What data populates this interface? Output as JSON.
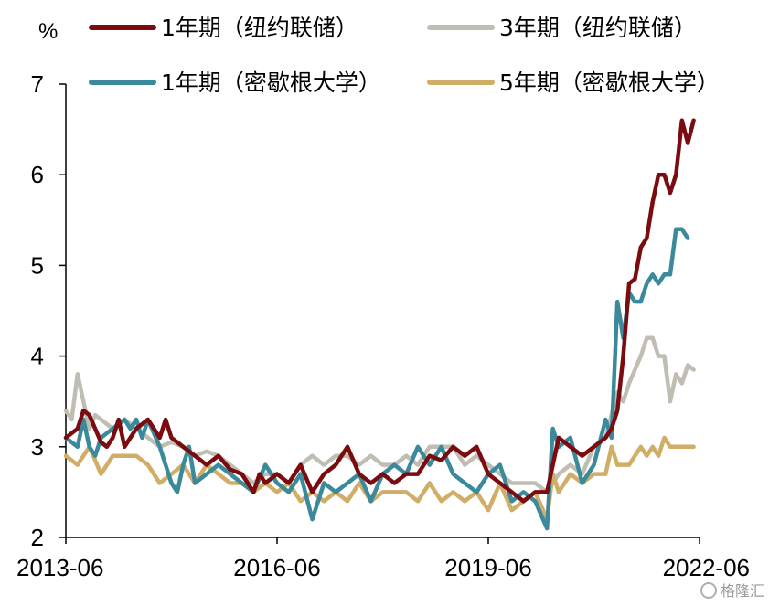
{
  "chart_data": {
    "type": "line",
    "title": "",
    "xlabel": "",
    "ylabel": "%",
    "ylim": [
      2,
      7
    ],
    "yticks": [
      2,
      3,
      4,
      5,
      6,
      7
    ],
    "xlim": [
      "2013-06",
      "2022-06"
    ],
    "xticks": [
      "2013-06",
      "2016-06",
      "2019-06",
      "2022-06"
    ],
    "grid": false,
    "legend_position": "top",
    "series": [
      {
        "name": "1年期（纽约联储）",
        "color": "#7a0c10",
        "points": [
          [
            "2013-06",
            3.1
          ],
          [
            "2013-08",
            3.2
          ],
          [
            "2013-09",
            3.4
          ],
          [
            "2013-10",
            3.35
          ],
          [
            "2013-11",
            3.2
          ],
          [
            "2013-12",
            3.05
          ],
          [
            "2014-01",
            3.0
          ],
          [
            "2014-02",
            3.1
          ],
          [
            "2014-03",
            3.3
          ],
          [
            "2014-04",
            3.0
          ],
          [
            "2014-05",
            3.1
          ],
          [
            "2014-06",
            3.2
          ],
          [
            "2014-08",
            3.3
          ],
          [
            "2014-09",
            3.2
          ],
          [
            "2014-10",
            3.1
          ],
          [
            "2014-11",
            3.3
          ],
          [
            "2014-12",
            3.1
          ],
          [
            "2015-02",
            3.0
          ],
          [
            "2015-04",
            2.9
          ],
          [
            "2015-06",
            2.8
          ],
          [
            "2015-08",
            2.9
          ],
          [
            "2015-10",
            2.75
          ],
          [
            "2015-12",
            2.7
          ],
          [
            "2016-02",
            2.5
          ],
          [
            "2016-03",
            2.7
          ],
          [
            "2016-04",
            2.6
          ],
          [
            "2016-06",
            2.7
          ],
          [
            "2016-08",
            2.6
          ],
          [
            "2016-10",
            2.8
          ],
          [
            "2016-12",
            2.5
          ],
          [
            "2017-02",
            2.7
          ],
          [
            "2017-04",
            2.8
          ],
          [
            "2017-06",
            3.0
          ],
          [
            "2017-08",
            2.7
          ],
          [
            "2017-10",
            2.6
          ],
          [
            "2017-12",
            2.7
          ],
          [
            "2018-02",
            2.6
          ],
          [
            "2018-04",
            2.7
          ],
          [
            "2018-06",
            2.7
          ],
          [
            "2018-08",
            2.9
          ],
          [
            "2018-10",
            2.85
          ],
          [
            "2018-12",
            3.0
          ],
          [
            "2019-02",
            2.9
          ],
          [
            "2019-04",
            3.0
          ],
          [
            "2019-06",
            2.7
          ],
          [
            "2019-08",
            2.6
          ],
          [
            "2019-10",
            2.5
          ],
          [
            "2019-12",
            2.4
          ],
          [
            "2020-02",
            2.5
          ],
          [
            "2020-04",
            2.5
          ],
          [
            "2020-05",
            2.8
          ],
          [
            "2020-06",
            3.1
          ],
          [
            "2020-08",
            3.0
          ],
          [
            "2020-10",
            2.9
          ],
          [
            "2020-12",
            3.0
          ],
          [
            "2021-02",
            3.1
          ],
          [
            "2021-03",
            3.2
          ],
          [
            "2021-04",
            3.4
          ],
          [
            "2021-05",
            4.0
          ],
          [
            "2021-06",
            4.8
          ],
          [
            "2021-07",
            4.85
          ],
          [
            "2021-08",
            5.2
          ],
          [
            "2021-09",
            5.3
          ],
          [
            "2021-10",
            5.7
          ],
          [
            "2021-11",
            6.0
          ],
          [
            "2021-12",
            6.0
          ],
          [
            "2022-01",
            5.8
          ],
          [
            "2022-02",
            6.0
          ],
          [
            "2022-03",
            6.6
          ],
          [
            "2022-04",
            6.35
          ],
          [
            "2022-05",
            6.6
          ]
        ]
      },
      {
        "name": "3年期（纽约联储）",
        "color": "#c0bdb2",
        "points": [
          [
            "2013-06",
            3.4
          ],
          [
            "2013-07",
            3.3
          ],
          [
            "2013-08",
            3.8
          ],
          [
            "2013-09",
            3.5
          ],
          [
            "2013-10",
            3.2
          ],
          [
            "2013-11",
            3.35
          ],
          [
            "2013-12",
            3.3
          ],
          [
            "2014-02",
            3.2
          ],
          [
            "2014-04",
            3.3
          ],
          [
            "2014-06",
            3.2
          ],
          [
            "2014-08",
            3.1
          ],
          [
            "2014-10",
            3.0
          ],
          [
            "2014-12",
            3.05
          ],
          [
            "2015-02",
            3.0
          ],
          [
            "2015-04",
            2.9
          ],
          [
            "2015-06",
            2.95
          ],
          [
            "2015-08",
            2.9
          ],
          [
            "2015-10",
            2.8
          ],
          [
            "2015-12",
            2.7
          ],
          [
            "2016-02",
            2.6
          ],
          [
            "2016-04",
            2.7
          ],
          [
            "2016-06",
            2.7
          ],
          [
            "2016-08",
            2.6
          ],
          [
            "2016-10",
            2.8
          ],
          [
            "2016-12",
            2.9
          ],
          [
            "2017-02",
            2.8
          ],
          [
            "2017-04",
            2.9
          ],
          [
            "2017-06",
            2.9
          ],
          [
            "2017-08",
            2.8
          ],
          [
            "2017-10",
            2.9
          ],
          [
            "2017-12",
            2.8
          ],
          [
            "2018-02",
            2.8
          ],
          [
            "2018-04",
            2.9
          ],
          [
            "2018-06",
            2.8
          ],
          [
            "2018-08",
            3.0
          ],
          [
            "2018-10",
            3.0
          ],
          [
            "2018-12",
            3.0
          ],
          [
            "2019-02",
            2.8
          ],
          [
            "2019-04",
            2.9
          ],
          [
            "2019-06",
            2.8
          ],
          [
            "2019-08",
            2.7
          ],
          [
            "2019-10",
            2.6
          ],
          [
            "2019-12",
            2.6
          ],
          [
            "2020-02",
            2.6
          ],
          [
            "2020-04",
            2.5
          ],
          [
            "2020-06",
            2.7
          ],
          [
            "2020-08",
            2.8
          ],
          [
            "2020-10",
            2.7
          ],
          [
            "2020-12",
            3.0
          ],
          [
            "2021-02",
            3.1
          ],
          [
            "2021-04",
            3.6
          ],
          [
            "2021-05",
            3.5
          ],
          [
            "2021-06",
            3.7
          ],
          [
            "2021-08",
            4.0
          ],
          [
            "2021-09",
            4.2
          ],
          [
            "2021-10",
            4.2
          ],
          [
            "2021-11",
            4.0
          ],
          [
            "2021-12",
            4.0
          ],
          [
            "2022-01",
            3.5
          ],
          [
            "2022-02",
            3.8
          ],
          [
            "2022-03",
            3.7
          ],
          [
            "2022-04",
            3.9
          ],
          [
            "2022-05",
            3.85
          ]
        ]
      },
      {
        "name": "1年期（密歇根大学）",
        "color": "#3b8a9b",
        "points": [
          [
            "2013-06",
            3.1
          ],
          [
            "2013-08",
            3.0
          ],
          [
            "2013-09",
            3.3
          ],
          [
            "2013-10",
            3.0
          ],
          [
            "2013-11",
            2.9
          ],
          [
            "2013-12",
            3.1
          ],
          [
            "2014-02",
            3.2
          ],
          [
            "2014-04",
            3.3
          ],
          [
            "2014-05",
            3.2
          ],
          [
            "2014-06",
            3.3
          ],
          [
            "2014-07",
            3.1
          ],
          [
            "2014-08",
            3.3
          ],
          [
            "2014-10",
            3.0
          ],
          [
            "2014-12",
            2.6
          ],
          [
            "2015-01",
            2.5
          ],
          [
            "2015-02",
            2.8
          ],
          [
            "2015-03",
            3.0
          ],
          [
            "2015-04",
            2.6
          ],
          [
            "2015-06",
            2.7
          ],
          [
            "2015-08",
            2.8
          ],
          [
            "2015-10",
            2.7
          ],
          [
            "2015-12",
            2.6
          ],
          [
            "2016-02",
            2.5
          ],
          [
            "2016-04",
            2.8
          ],
          [
            "2016-06",
            2.6
          ],
          [
            "2016-08",
            2.5
          ],
          [
            "2016-10",
            2.7
          ],
          [
            "2016-12",
            2.2
          ],
          [
            "2017-02",
            2.6
          ],
          [
            "2017-04",
            2.5
          ],
          [
            "2017-06",
            2.6
          ],
          [
            "2017-08",
            2.7
          ],
          [
            "2017-10",
            2.4
          ],
          [
            "2017-12",
            2.7
          ],
          [
            "2018-02",
            2.8
          ],
          [
            "2018-04",
            2.7
          ],
          [
            "2018-06",
            3.0
          ],
          [
            "2018-08",
            2.8
          ],
          [
            "2018-10",
            3.0
          ],
          [
            "2018-12",
            2.7
          ],
          [
            "2019-02",
            2.6
          ],
          [
            "2019-04",
            2.5
          ],
          [
            "2019-06",
            2.7
          ],
          [
            "2019-08",
            2.8
          ],
          [
            "2019-10",
            2.4
          ],
          [
            "2019-12",
            2.5
          ],
          [
            "2020-02",
            2.4
          ],
          [
            "2020-04",
            2.1
          ],
          [
            "2020-05",
            3.2
          ],
          [
            "2020-06",
            3.0
          ],
          [
            "2020-08",
            3.1
          ],
          [
            "2020-10",
            2.6
          ],
          [
            "2020-12",
            2.8
          ],
          [
            "2021-02",
            3.3
          ],
          [
            "2021-03",
            3.1
          ],
          [
            "2021-04",
            4.6
          ],
          [
            "2021-05",
            4.2
          ],
          [
            "2021-06",
            4.7
          ],
          [
            "2021-07",
            4.6
          ],
          [
            "2021-08",
            4.6
          ],
          [
            "2021-09",
            4.8
          ],
          [
            "2021-10",
            4.9
          ],
          [
            "2021-11",
            4.8
          ],
          [
            "2021-12",
            4.9
          ],
          [
            "2022-01",
            4.9
          ],
          [
            "2022-02",
            5.4
          ],
          [
            "2022-03",
            5.4
          ],
          [
            "2022-04",
            5.3
          ]
        ]
      },
      {
        "name": "5年期（密歇根大学）",
        "color": "#d1ae68",
        "points": [
          [
            "2013-06",
            2.9
          ],
          [
            "2013-08",
            2.8
          ],
          [
            "2013-10",
            3.0
          ],
          [
            "2013-12",
            2.7
          ],
          [
            "2014-02",
            2.9
          ],
          [
            "2014-04",
            2.9
          ],
          [
            "2014-06",
            2.9
          ],
          [
            "2014-08",
            2.8
          ],
          [
            "2014-10",
            2.6
          ],
          [
            "2014-12",
            2.7
          ],
          [
            "2015-02",
            2.8
          ],
          [
            "2015-04",
            2.6
          ],
          [
            "2015-06",
            2.8
          ],
          [
            "2015-08",
            2.7
          ],
          [
            "2015-10",
            2.6
          ],
          [
            "2015-12",
            2.6
          ],
          [
            "2016-02",
            2.5
          ],
          [
            "2016-04",
            2.6
          ],
          [
            "2016-06",
            2.5
          ],
          [
            "2016-08",
            2.6
          ],
          [
            "2016-10",
            2.4
          ],
          [
            "2016-12",
            2.5
          ],
          [
            "2017-02",
            2.4
          ],
          [
            "2017-04",
            2.5
          ],
          [
            "2017-06",
            2.4
          ],
          [
            "2017-08",
            2.6
          ],
          [
            "2017-10",
            2.4
          ],
          [
            "2017-12",
            2.5
          ],
          [
            "2018-02",
            2.5
          ],
          [
            "2018-04",
            2.5
          ],
          [
            "2018-06",
            2.4
          ],
          [
            "2018-08",
            2.6
          ],
          [
            "2018-10",
            2.4
          ],
          [
            "2018-12",
            2.5
          ],
          [
            "2019-02",
            2.4
          ],
          [
            "2019-04",
            2.5
          ],
          [
            "2019-06",
            2.3
          ],
          [
            "2019-08",
            2.6
          ],
          [
            "2019-10",
            2.3
          ],
          [
            "2019-12",
            2.4
          ],
          [
            "2020-02",
            2.5
          ],
          [
            "2020-04",
            2.2
          ],
          [
            "2020-05",
            2.7
          ],
          [
            "2020-06",
            2.5
          ],
          [
            "2020-08",
            2.7
          ],
          [
            "2020-10",
            2.6
          ],
          [
            "2020-12",
            2.7
          ],
          [
            "2021-02",
            2.7
          ],
          [
            "2021-03",
            3.0
          ],
          [
            "2021-04",
            2.8
          ],
          [
            "2021-06",
            2.8
          ],
          [
            "2021-08",
            3.0
          ],
          [
            "2021-09",
            2.9
          ],
          [
            "2021-10",
            3.0
          ],
          [
            "2021-11",
            2.9
          ],
          [
            "2021-12",
            3.1
          ],
          [
            "2022-01",
            3.0
          ],
          [
            "2022-03",
            3.0
          ],
          [
            "2022-05",
            3.0
          ]
        ]
      }
    ]
  },
  "watermark": "格隆汇"
}
